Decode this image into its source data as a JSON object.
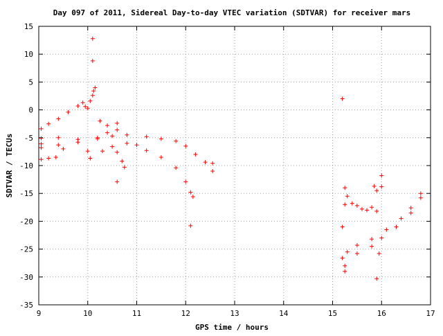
{
  "chart_data": {
    "type": "scatter",
    "title": "Day 097 of 2011, Sidereal Day-to-day VTEC variation (SDTVAR) for receiver mars",
    "xlabel": "GPS time / hours",
    "ylabel": "SDTVAR / TECUs",
    "xlim": [
      9,
      17
    ],
    "ylim": [
      -35,
      15
    ],
    "x_ticks": [
      "9",
      "10",
      "11",
      "12",
      "13",
      "14",
      "15",
      "16",
      "17"
    ],
    "y_ticks": [
      "15",
      "10",
      "5",
      "0",
      "-5",
      "-10",
      "-15",
      "-20",
      "-25",
      "-30",
      "-35"
    ],
    "grid": true,
    "marker": "+",
    "colors": {
      "points": "#ff0000",
      "grid": "#a0a0a0",
      "axes": "#000000"
    },
    "series": [
      {
        "points": [
          [
            9.05,
            -3.4
          ],
          [
            9.2,
            -2.5
          ],
          [
            9.4,
            -1.6
          ],
          [
            9.6,
            -0.4
          ],
          [
            9.8,
            0.7
          ],
          [
            9.9,
            1.3
          ],
          [
            9.95,
            0.6
          ],
          [
            10.0,
            0.3
          ],
          [
            10.05,
            1.6
          ],
          [
            10.1,
            2.6
          ],
          [
            10.12,
            3.4
          ],
          [
            10.15,
            4.0
          ],
          [
            9.05,
            -5.1
          ],
          [
            9.4,
            -5.0
          ],
          [
            9.8,
            -5.3
          ],
          [
            10.2,
            -5.0
          ],
          [
            10.5,
            -4.7
          ],
          [
            10.8,
            -4.5
          ],
          [
            11.2,
            -4.8
          ],
          [
            11.5,
            -5.2
          ],
          [
            11.8,
            -5.6
          ],
          [
            12.0,
            -6.5
          ],
          [
            12.2,
            -8.0
          ],
          [
            12.4,
            -9.4
          ],
          [
            12.55,
            -9.6
          ],
          [
            9.05,
            -6.1
          ],
          [
            9.4,
            -6.3
          ],
          [
            9.8,
            -5.8
          ],
          [
            10.2,
            -5.2
          ],
          [
            10.4,
            -4.1
          ],
          [
            10.6,
            -3.6
          ],
          [
            10.8,
            -6.0
          ],
          [
            11.0,
            -6.3
          ],
          [
            11.2,
            -7.3
          ],
          [
            11.5,
            -8.5
          ],
          [
            11.8,
            -10.4
          ],
          [
            12.0,
            -12.9
          ],
          [
            12.1,
            -14.8
          ],
          [
            12.15,
            -15.6
          ],
          [
            9.05,
            -6.8
          ],
          [
            9.5,
            -7.0
          ],
          [
            10.0,
            -7.4
          ],
          [
            10.3,
            -7.4
          ],
          [
            10.5,
            -6.6
          ],
          [
            10.6,
            -7.6
          ],
          [
            10.7,
            -9.2
          ],
          [
            10.75,
            -10.3
          ],
          [
            9.05,
            -8.9
          ],
          [
            9.2,
            -8.7
          ],
          [
            9.35,
            -8.5
          ],
          [
            10.05,
            -8.7
          ],
          [
            10.6,
            -12.9
          ],
          [
            12.1,
            -20.8
          ],
          [
            12.55,
            -11.0
          ],
          [
            10.1,
            12.8
          ],
          [
            10.1,
            8.8
          ],
          [
            10.4,
            -2.8
          ],
          [
            10.6,
            -2.4
          ],
          [
            10.25,
            -2.0
          ],
          [
            15.2,
            -26.6
          ],
          [
            15.3,
            -25.5
          ],
          [
            15.5,
            -24.3
          ],
          [
            15.8,
            -23.2
          ],
          [
            16.1,
            -21.5
          ],
          [
            16.4,
            -19.5
          ],
          [
            16.6,
            -17.6
          ],
          [
            16.8,
            -15.0
          ],
          [
            15.25,
            -28.0
          ],
          [
            15.5,
            -25.8
          ],
          [
            15.8,
            -24.5
          ],
          [
            16.0,
            -23.0
          ],
          [
            16.3,
            -21.0
          ],
          [
            16.6,
            -18.5
          ],
          [
            16.8,
            -15.8
          ],
          [
            15.25,
            -14.0
          ],
          [
            15.3,
            -15.5
          ],
          [
            15.4,
            -16.8
          ],
          [
            15.5,
            -17.2
          ],
          [
            15.6,
            -17.8
          ],
          [
            15.7,
            -18.0
          ],
          [
            15.8,
            -17.5
          ],
          [
            15.9,
            -18.2
          ],
          [
            15.2,
            2.0
          ],
          [
            15.2,
            -21.0
          ],
          [
            15.25,
            -29.0
          ],
          [
            15.9,
            -30.3
          ],
          [
            15.85,
            -13.7
          ],
          [
            15.9,
            -14.5
          ],
          [
            16.0,
            -11.8
          ],
          [
            16.0,
            -13.8
          ],
          [
            15.95,
            -25.8
          ],
          [
            15.25,
            -17.0
          ]
        ]
      }
    ]
  }
}
